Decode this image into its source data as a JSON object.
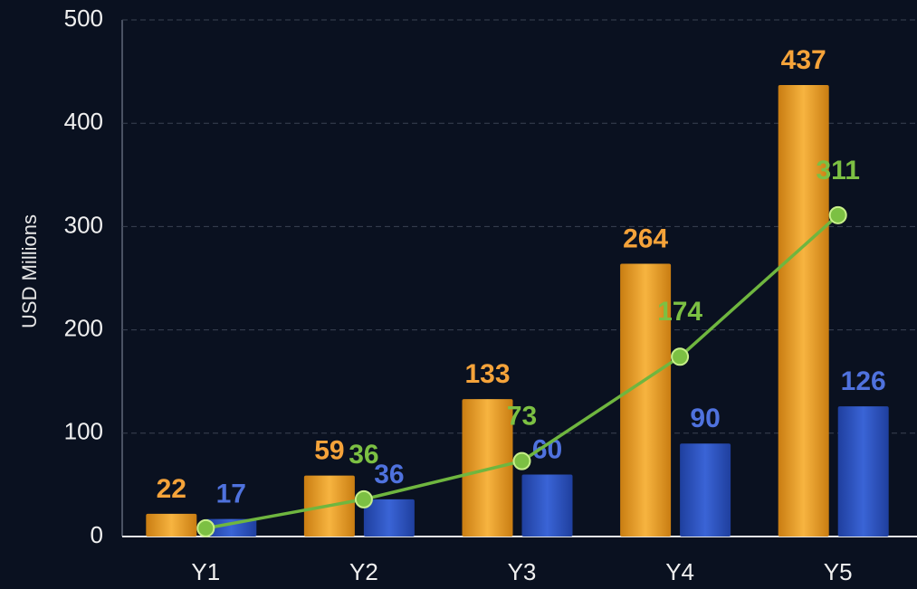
{
  "chart_data": {
    "type": "bar",
    "y_label": "USD Millions",
    "categories": [
      "Y1",
      "Y2",
      "Y3",
      "Y4",
      "Y5"
    ],
    "series": [
      {
        "color": "#f2a62a",
        "label_color": "#f5a33a",
        "values": [
          22,
          59,
          133,
          264,
          437
        ]
      },
      {
        "color": "#2f57c9",
        "label_color": "#4f72de",
        "values": [
          17,
          36,
          60,
          90,
          126
        ]
      },
      {
        "type": "line",
        "color": "#6fb63f",
        "label_color": "#7cc043",
        "values": [
          8,
          36,
          73,
          174,
          311
        ],
        "value_labels": [
          null,
          "36",
          "73",
          "174",
          "311"
        ]
      }
    ],
    "ylim": [
      0,
      500
    ],
    "yticks": [
      0,
      100,
      200,
      300,
      400,
      500
    ],
    "grid": true
  }
}
